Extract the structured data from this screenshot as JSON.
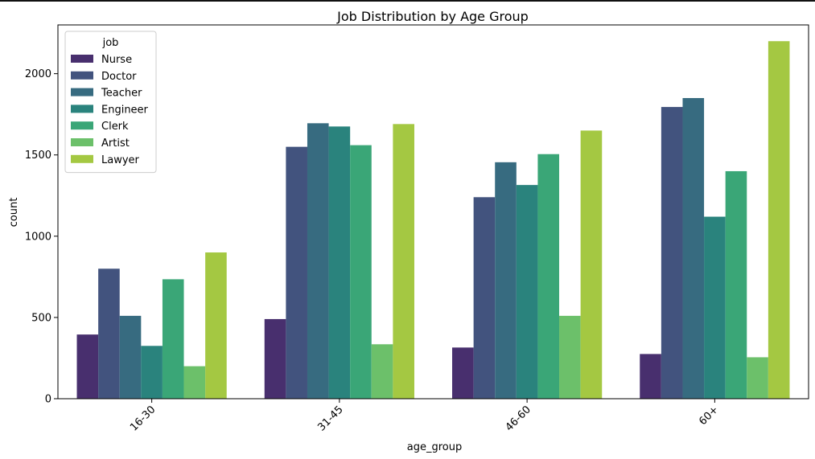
{
  "chart_data": {
    "type": "bar",
    "title": "Job Distribution by Age Group",
    "xlabel": "age_group",
    "ylabel": "count",
    "categories": [
      "16-30",
      "31-45",
      "46-60",
      "60+"
    ],
    "ylim": [
      0,
      2300
    ],
    "yticks": [
      0,
      500,
      1000,
      1500,
      2000
    ],
    "legend_title": "job",
    "legend_position": "top-left",
    "grid": false,
    "series": [
      {
        "name": "Nurse",
        "color": "#482f6e",
        "values": [
          395,
          490,
          315,
          275
        ]
      },
      {
        "name": "Doctor",
        "color": "#42537e",
        "values": [
          800,
          1550,
          1240,
          1795
        ]
      },
      {
        "name": "Teacher",
        "color": "#376b80",
        "values": [
          510,
          1695,
          1455,
          1850
        ]
      },
      {
        "name": "Engineer",
        "color": "#2a837d",
        "values": [
          325,
          1675,
          1315,
          1120
        ]
      },
      {
        "name": "Clerk",
        "color": "#3aa677",
        "values": [
          735,
          1560,
          1505,
          1400
        ]
      },
      {
        "name": "Artist",
        "color": "#6cc06a",
        "values": [
          200,
          335,
          510,
          255
        ]
      },
      {
        "name": "Lawyer",
        "color": "#a4c842",
        "values": [
          900,
          1690,
          1650,
          2200
        ]
      }
    ]
  }
}
